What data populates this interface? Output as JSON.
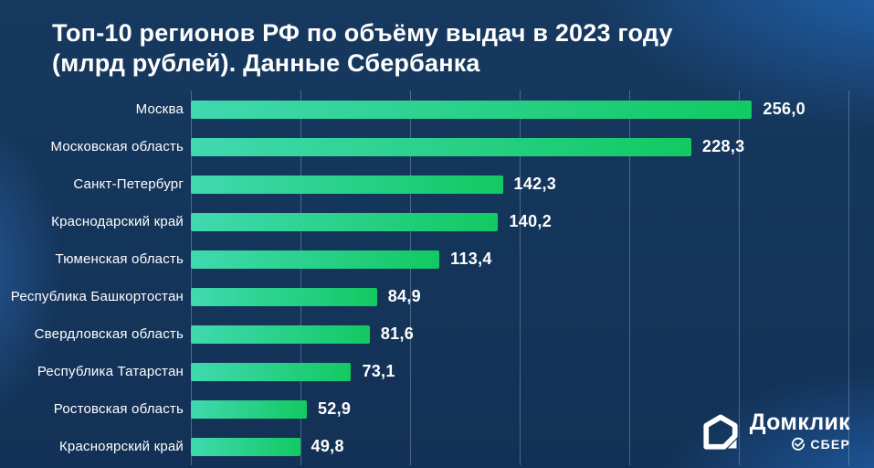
{
  "title": {
    "lines": [
      "Топ-10 регионов РФ по объёму выдач в 2023 году",
      "(млрд рублей). Данные Сбербанка"
    ]
  },
  "chart_data": {
    "type": "bar",
    "orientation": "horizontal",
    "title": "Топ-10 регионов РФ по объёму выдач в 2023 году (млрд рублей). Данные Сбербанка",
    "categories": [
      "Москва",
      "Московская область",
      "Санкт-Петербург",
      "Краснодарский край",
      "Тюменская область",
      "Республика Башкортостан",
      "Свердловская область",
      "Республика Татарстан",
      "Ростовская область",
      "Красноярский край"
    ],
    "values": [
      256.0,
      228.3,
      142.3,
      140.2,
      113.4,
      84.9,
      81.6,
      73.1,
      52.9,
      49.8
    ],
    "value_labels": [
      "256,0",
      "228,3",
      "142,3",
      "140,2",
      "113,4",
      "84,9",
      "81,6",
      "73,1",
      "52,9",
      "49,8"
    ],
    "xlabel": "",
    "ylabel": "",
    "xlim": [
      0,
      300
    ],
    "gridline_step": 50,
    "grid": true,
    "legend": false,
    "data_labels": true
  },
  "logo": {
    "brand": "Домклик",
    "bank": "СБЕР"
  },
  "colors": {
    "background": "#133156",
    "bar_gradient_start": "#40d9b0",
    "bar_gradient_end": "#12c962",
    "gridline": "rgba(168,190,214,0.38)",
    "text": "#ffffff"
  }
}
